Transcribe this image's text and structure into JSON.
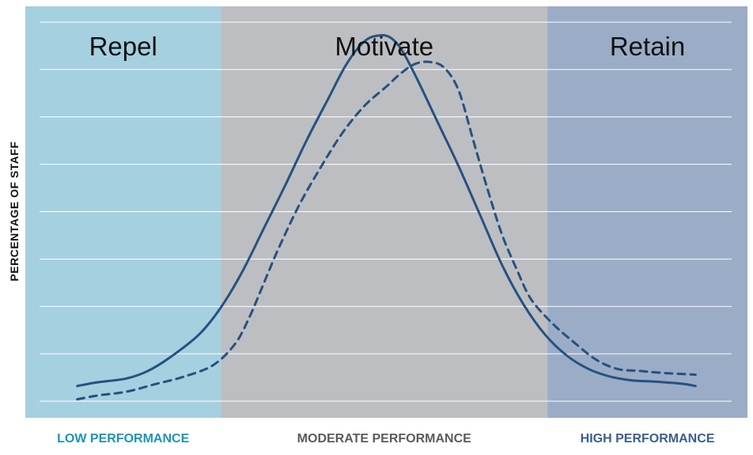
{
  "chart_data": {
    "type": "line",
    "title": "",
    "xlabel": "",
    "ylabel": "PERCENTAGE OF STAFF",
    "xlim": [
      0,
      100
    ],
    "ylim": [
      0,
      100
    ],
    "grid": true,
    "zones": [
      {
        "label": "Repel",
        "footer": "LOW PERFORMANCE",
        "x_start": 0,
        "x_end": 27.1,
        "color": "#a4d0e0",
        "footer_color": "#1b95b5"
      },
      {
        "label": "Motivate",
        "footer": "MODERATE PERFORMANCE",
        "x_start": 27.1,
        "x_end": 72.3,
        "color": "#bdbec2",
        "footer_color": "#5b5b5b"
      },
      {
        "label": "Retain",
        "footer": "HIGH PERFORMANCE",
        "x_start": 72.3,
        "x_end": 100,
        "color": "#9bacc7",
        "footer_color": "#3a5f8c"
      }
    ],
    "series": [
      {
        "style": "solid",
        "color": "#24527f",
        "x": [
          7.2,
          10,
          14,
          17,
          20,
          24,
          27,
          30,
          33,
          36,
          39,
          42,
          44.5,
          47,
          49,
          50.5,
          52,
          54,
          57,
          60,
          63,
          66,
          69,
          72,
          75,
          78,
          81,
          84,
          87,
          91,
          92.8
        ],
        "y": [
          4.0,
          5.0,
          6.0,
          8.0,
          11.5,
          17.5,
          24.5,
          34,
          45.5,
          57,
          69,
          80,
          89,
          95,
          96.5,
          96,
          93,
          86,
          74,
          62,
          49,
          36,
          25.5,
          17.5,
          12,
          8.5,
          6.5,
          5.5,
          5.2,
          4.6,
          4.0
        ]
      },
      {
        "style": "dashed",
        "color": "#24527f",
        "x": [
          7.2,
          10,
          14,
          18,
          22,
          26,
          29,
          31,
          33,
          35,
          38,
          41,
          44,
          47,
          50,
          52,
          54,
          56,
          58,
          60,
          62,
          64,
          66,
          68,
          70,
          73,
          76,
          79,
          82,
          85,
          88,
          92.8
        ],
        "y": [
          0.5,
          1.5,
          2.5,
          4.5,
          6.5,
          9.5,
          15,
          22,
          31,
          40,
          52,
          62,
          71,
          78,
          83,
          86.5,
          89,
          89.5,
          88,
          82,
          69,
          56,
          44,
          35,
          27,
          20.5,
          15.5,
          11,
          8.5,
          8.0,
          7.5,
          7.0
        ]
      }
    ]
  }
}
